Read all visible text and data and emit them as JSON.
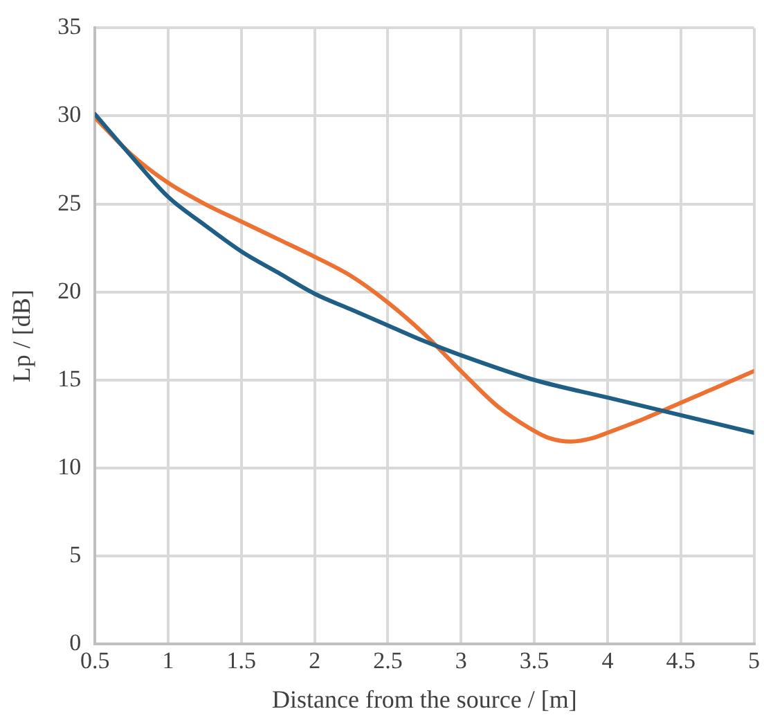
{
  "chart_data": {
    "type": "line",
    "xlabel": "Distance from the source / [m]",
    "ylabel": "Lp / [dB]",
    "xlim": [
      0.5,
      5
    ],
    "xticks": [
      0.5,
      1,
      1.5,
      2,
      2.5,
      3,
      3.5,
      4,
      4.5,
      5
    ],
    "ylim": [
      0,
      35
    ],
    "yticks": [
      0,
      5,
      10,
      15,
      20,
      25,
      30,
      35
    ],
    "grid": true,
    "legend": false,
    "marker": "none",
    "line_style": "solid",
    "series": [
      {
        "color": "#1f5f86",
        "x": [
          0.5,
          0.75,
          1,
          1.25,
          1.5,
          1.75,
          2,
          2.25,
          2.5,
          2.75,
          3,
          3.5,
          4,
          4.5,
          5
        ],
        "values": [
          30.1,
          27.7,
          25.4,
          23.8,
          22.3,
          21.1,
          19.9,
          19.0,
          18.1,
          17.2,
          16.4,
          15.0,
          14.0,
          13.0,
          12.0
        ]
      },
      {
        "color": "#ed7133",
        "x": [
          0.5,
          0.75,
          1,
          1.25,
          1.5,
          1.75,
          2,
          2.25,
          2.5,
          2.75,
          3,
          3.25,
          3.5,
          3.6,
          3.75,
          3.9,
          4,
          4.25,
          4.5,
          4.75,
          5
        ],
        "values": [
          29.9,
          27.8,
          26.2,
          25.0,
          24.0,
          23.0,
          22.0,
          20.9,
          19.4,
          17.6,
          15.5,
          13.5,
          12.1,
          11.7,
          11.5,
          11.7,
          12.0,
          12.8,
          13.7,
          14.6,
          15.5
        ]
      }
    ]
  }
}
